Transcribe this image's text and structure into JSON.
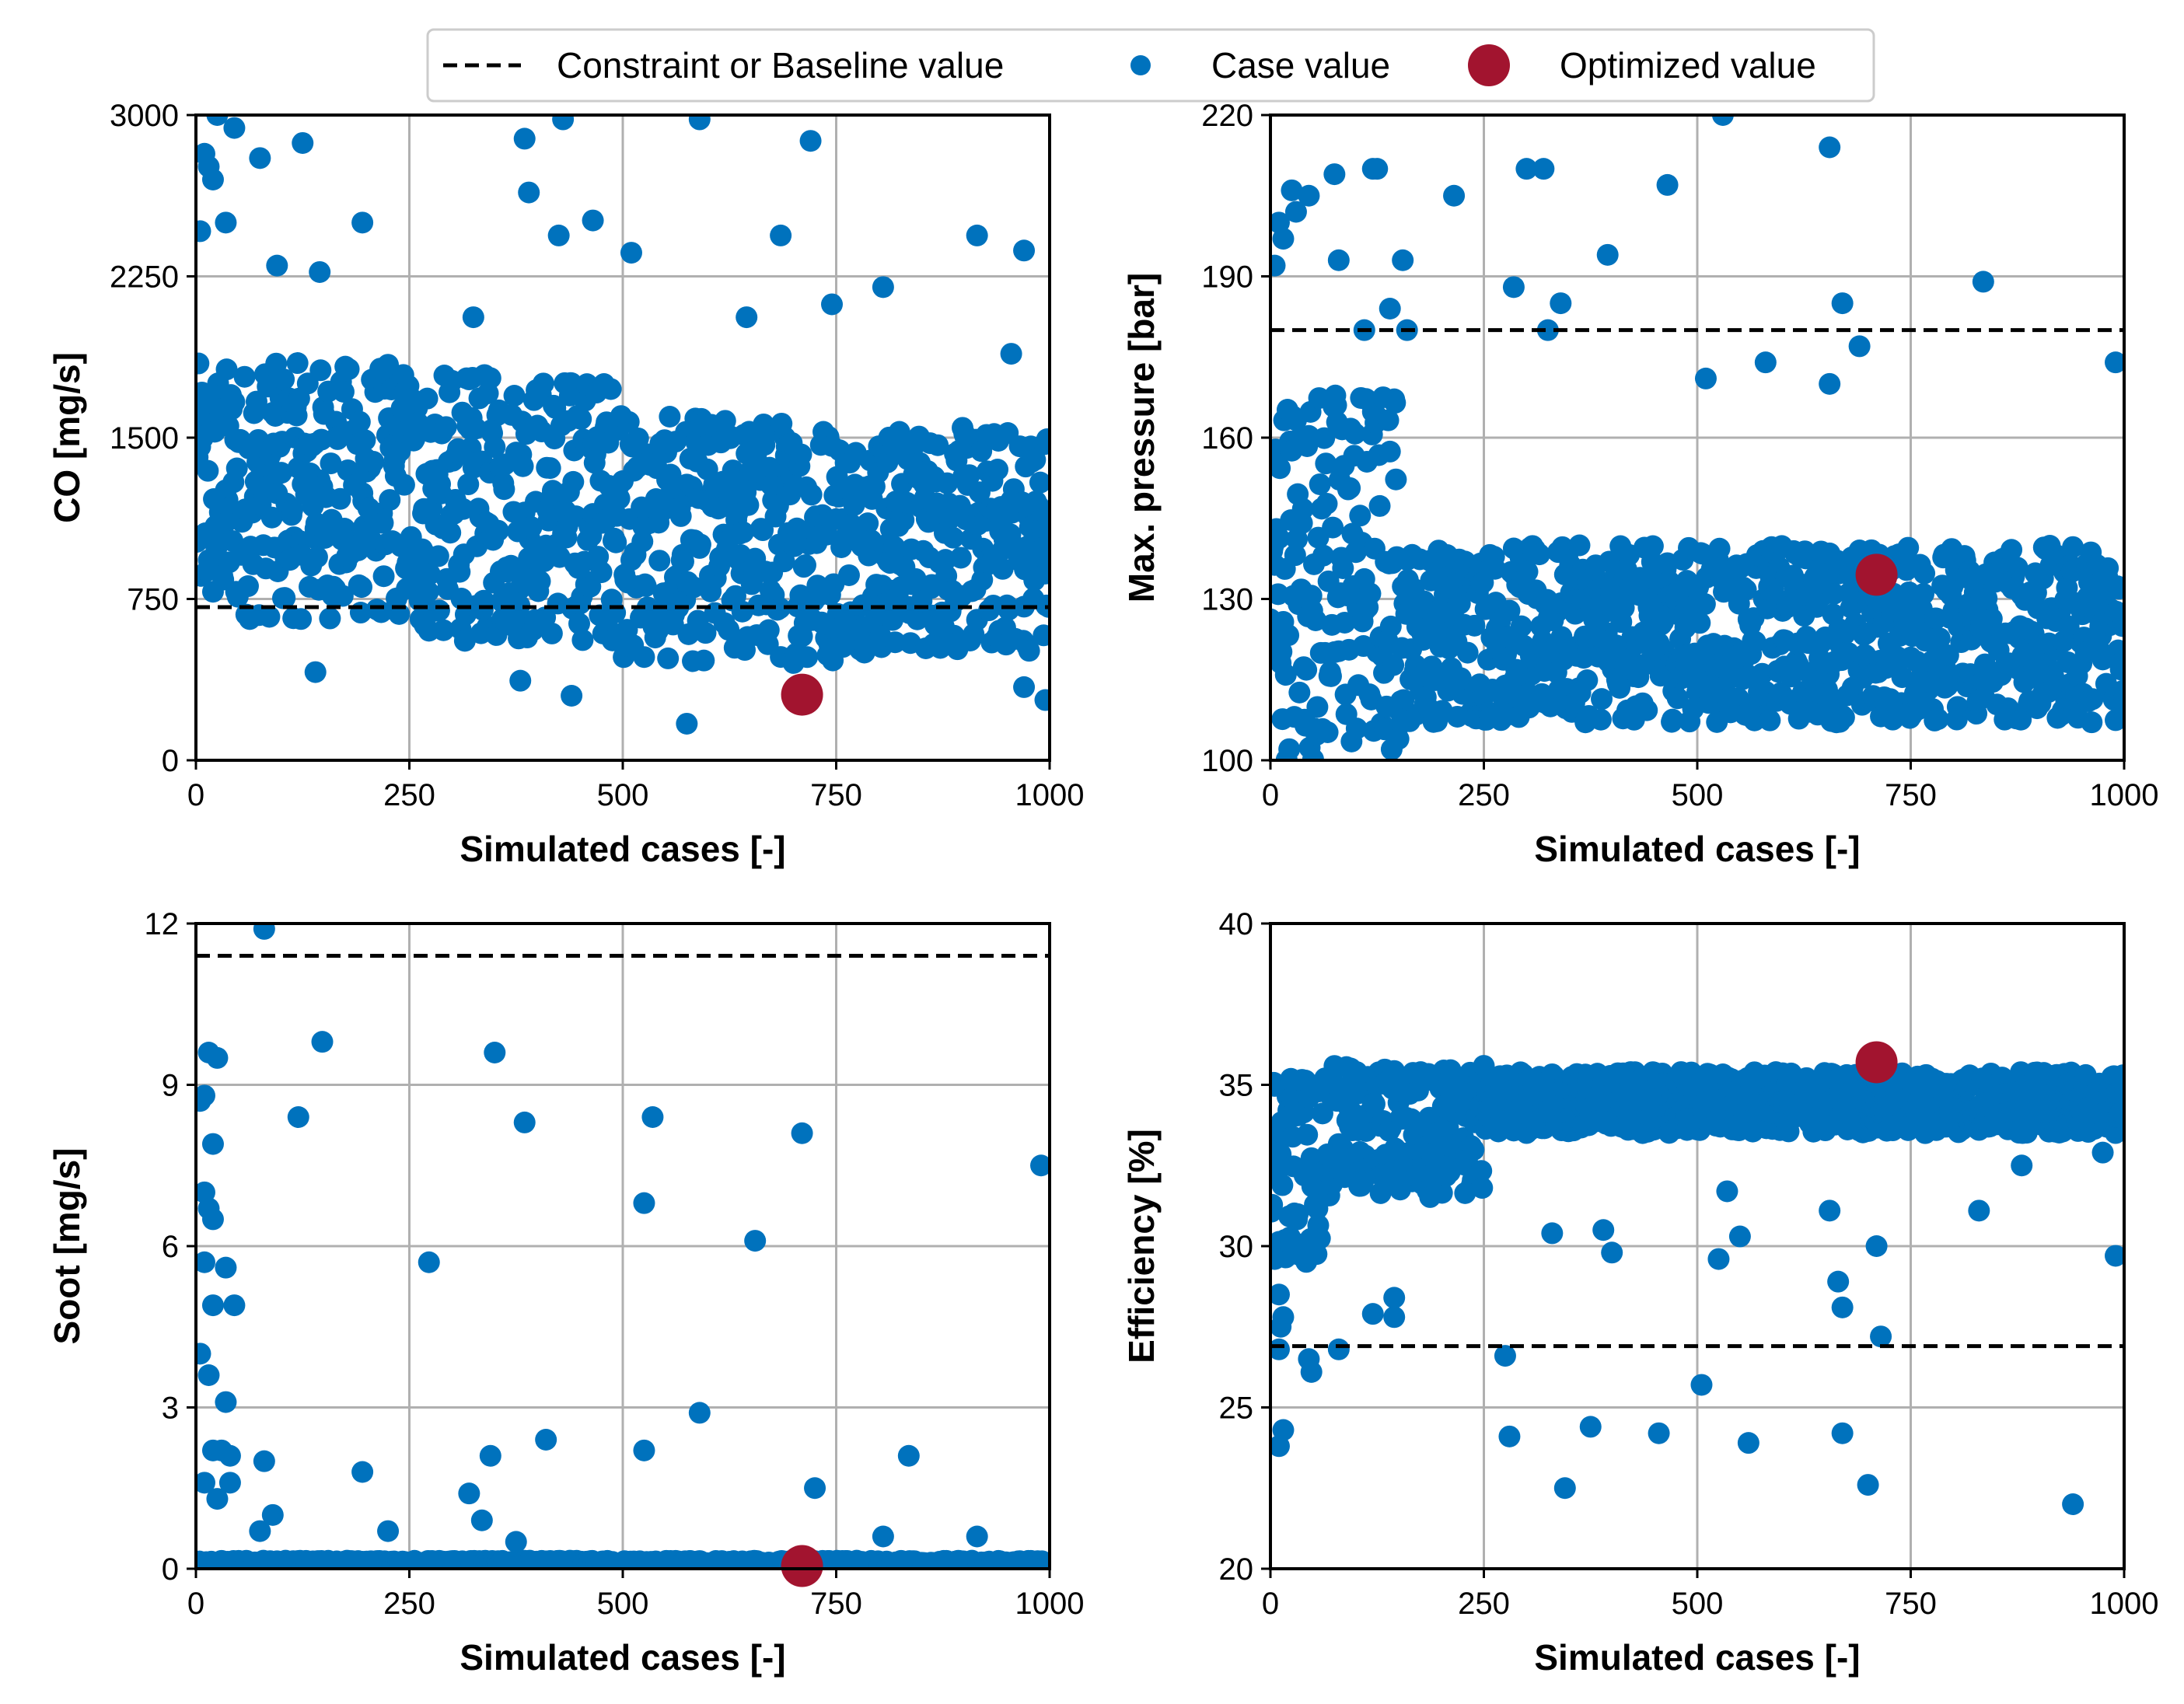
{
  "legend": {
    "items": [
      {
        "label": "Constraint or Baseline value",
        "kind": "dashed-line",
        "color": "#000000"
      },
      {
        "label": "Case value",
        "kind": "marker-small",
        "color": "#0072BD"
      },
      {
        "label": "Optimized value",
        "kind": "marker-large",
        "color": "#A2142F"
      }
    ]
  },
  "colors": {
    "case": "#0072BD",
    "optimized": "#A2142F",
    "constraint": "#000000",
    "grid": "#b0b0b0"
  },
  "chart_data": [
    {
      "id": "co",
      "type": "scatter",
      "ylabel": "CO [mg/s]",
      "xlabel": "Simulated cases [-]",
      "xlim": [
        0,
        1000
      ],
      "ylim": [
        0,
        3000
      ],
      "xticks": [
        0,
        250,
        500,
        750,
        1000
      ],
      "yticks": [
        0,
        750,
        1500,
        2250,
        3000
      ],
      "constraint": 712,
      "optimized": {
        "x": 710,
        "y": 305
      },
      "n_cases": 1000,
      "outliers": [
        [
          5,
          2460
        ],
        [
          10,
          2820
        ],
        [
          15,
          2760
        ],
        [
          20,
          2700
        ],
        [
          25,
          3000
        ],
        [
          35,
          2500
        ],
        [
          45,
          2940
        ],
        [
          75,
          2800
        ],
        [
          95,
          2300
        ],
        [
          125,
          2870
        ],
        [
          145,
          2270
        ],
        [
          195,
          2500
        ],
        [
          325,
          2060
        ],
        [
          385,
          2890
        ],
        [
          390,
          2640
        ],
        [
          430,
          2980
        ],
        [
          425,
          2440
        ],
        [
          465,
          2510
        ],
        [
          510,
          2360
        ],
        [
          590,
          2980
        ],
        [
          645,
          2060
        ],
        [
          685,
          2440
        ],
        [
          720,
          2880
        ],
        [
          745,
          2120
        ],
        [
          805,
          2200
        ],
        [
          915,
          2440
        ],
        [
          970,
          2370
        ],
        [
          955,
          1890
        ],
        [
          440,
          300
        ],
        [
          575,
          170
        ],
        [
          705,
          340
        ],
        [
          970,
          340
        ],
        [
          995,
          280
        ],
        [
          380,
          370
        ],
        [
          140,
          410
        ]
      ],
      "bands": [
        {
          "x0": 0,
          "x1": 260,
          "lo": 650,
          "hi": 1850
        },
        {
          "x0": 260,
          "x1": 500,
          "lo": 550,
          "hi": 1800
        },
        {
          "x0": 500,
          "x1": 750,
          "lo": 450,
          "hi": 1600
        },
        {
          "x0": 750,
          "x1": 1000,
          "lo": 500,
          "hi": 1550
        }
      ]
    },
    {
      "id": "pressure",
      "type": "scatter",
      "ylabel": "Max. pressure [bar]",
      "xlabel": "Simulated cases [-]",
      "xlim": [
        0,
        1000
      ],
      "ylim": [
        100,
        220
      ],
      "xticks": [
        0,
        250,
        500,
        750,
        1000
      ],
      "yticks": [
        100,
        130,
        160,
        190,
        220
      ],
      "constraint": 180,
      "optimized": {
        "x": 710,
        "y": 134.5
      },
      "n_cases": 1000,
      "outliers": [
        [
          5,
          192
        ],
        [
          10,
          200
        ],
        [
          15,
          197
        ],
        [
          25,
          206
        ],
        [
          30,
          202
        ],
        [
          45,
          205
        ],
        [
          75,
          209
        ],
        [
          80,
          193
        ],
        [
          120,
          210
        ],
        [
          125,
          210
        ],
        [
          140,
          184
        ],
        [
          155,
          193
        ],
        [
          215,
          205
        ],
        [
          285,
          188
        ],
        [
          300,
          210
        ],
        [
          320,
          210
        ],
        [
          340,
          185
        ],
        [
          395,
          194
        ],
        [
          465,
          207
        ],
        [
          530,
          220
        ],
        [
          655,
          214
        ],
        [
          670,
          185
        ],
        [
          690,
          177
        ],
        [
          835,
          189
        ],
        [
          990,
          174
        ],
        [
          510,
          171
        ],
        [
          580,
          174
        ],
        [
          655,
          170
        ],
        [
          110,
          180
        ],
        [
          160,
          180
        ],
        [
          325,
          180
        ]
      ],
      "bands": [
        {
          "x0": 0,
          "x1": 150,
          "lo": 100,
          "hi": 170
        },
        {
          "x0": 150,
          "x1": 1000,
          "lo": 107,
          "hi": 140
        }
      ]
    },
    {
      "id": "soot",
      "type": "scatter",
      "ylabel": "Soot [mg/s]",
      "xlabel": "Simulated cases [-]",
      "xlim": [
        0,
        1000
      ],
      "ylim": [
        0,
        12
      ],
      "xticks": [
        0,
        250,
        500,
        750,
        1000
      ],
      "yticks": [
        0,
        3,
        6,
        9,
        12
      ],
      "constraint": 11.4,
      "optimized": {
        "x": 710,
        "y": 0.05
      },
      "n_cases": 1000,
      "outliers": [
        [
          5,
          8.7
        ],
        [
          10,
          8.8
        ],
        [
          15,
          9.6
        ],
        [
          20,
          7.9
        ],
        [
          25,
          9.5
        ],
        [
          10,
          7.0
        ],
        [
          15,
          6.7
        ],
        [
          20,
          6.5
        ],
        [
          35,
          5.6
        ],
        [
          45,
          4.9
        ],
        [
          10,
          5.7
        ],
        [
          20,
          4.9
        ],
        [
          5,
          4.0
        ],
        [
          15,
          3.6
        ],
        [
          35,
          3.1
        ],
        [
          20,
          2.2
        ],
        [
          30,
          2.2
        ],
        [
          40,
          2.1
        ],
        [
          10,
          1.6
        ],
        [
          25,
          1.3
        ],
        [
          40,
          1.6
        ],
        [
          80,
          11.9
        ],
        [
          80,
          2.0
        ],
        [
          90,
          1.0
        ],
        [
          75,
          0.7
        ],
        [
          120,
          8.4
        ],
        [
          148,
          9.8
        ],
        [
          195,
          1.8
        ],
        [
          225,
          0.7
        ],
        [
          273,
          5.7
        ],
        [
          320,
          1.4
        ],
        [
          335,
          0.9
        ],
        [
          345,
          2.1
        ],
        [
          350,
          9.6
        ],
        [
          385,
          8.3
        ],
        [
          375,
          0.5
        ],
        [
          410,
          2.4
        ],
        [
          525,
          6.8
        ],
        [
          535,
          8.4
        ],
        [
          525,
          2.2
        ],
        [
          590,
          2.9
        ],
        [
          655,
          6.1
        ],
        [
          710,
          8.1
        ],
        [
          725,
          1.5
        ],
        [
          805,
          0.6
        ],
        [
          835,
          2.1
        ],
        [
          915,
          0.6
        ],
        [
          990,
          7.5
        ]
      ],
      "bands": [
        {
          "x0": 0,
          "x1": 1000,
          "lo": 0.0,
          "hi": 0.15
        }
      ]
    },
    {
      "id": "efficiency",
      "type": "scatter",
      "ylabel": "Efficiency [%]",
      "xlabel": "Simulated cases [-]",
      "xlim": [
        0,
        1000
      ],
      "ylim": [
        20,
        40
      ],
      "xticks": [
        0,
        250,
        500,
        750,
        1000
      ],
      "yticks": [
        20,
        25,
        30,
        35,
        40
      ],
      "constraint": 26.9,
      "optimized": {
        "x": 710,
        "y": 35.7
      },
      "n_cases": 1000,
      "outliers": [
        [
          5,
          29.6
        ],
        [
          10,
          28.5
        ],
        [
          12,
          27.5
        ],
        [
          15,
          27.8
        ],
        [
          10,
          26.8
        ],
        [
          15,
          24.3
        ],
        [
          10,
          23.8
        ],
        [
          45,
          26.5
        ],
        [
          48,
          26.1
        ],
        [
          80,
          26.8
        ],
        [
          120,
          27.9
        ],
        [
          145,
          27.8
        ],
        [
          145,
          28.4
        ],
        [
          275,
          26.6
        ],
        [
          280,
          24.1
        ],
        [
          330,
          30.4
        ],
        [
          345,
          22.5
        ],
        [
          375,
          24.4
        ],
        [
          390,
          30.5
        ],
        [
          400,
          29.8
        ],
        [
          455,
          24.2
        ],
        [
          505,
          25.7
        ],
        [
          525,
          29.6
        ],
        [
          535,
          31.7
        ],
        [
          550,
          30.3
        ],
        [
          560,
          23.9
        ],
        [
          655,
          31.1
        ],
        [
          665,
          28.9
        ],
        [
          670,
          28.1
        ],
        [
          670,
          24.2
        ],
        [
          700,
          22.6
        ],
        [
          710,
          30.0
        ],
        [
          715,
          27.2
        ],
        [
          830,
          31.1
        ],
        [
          880,
          32.5
        ],
        [
          940,
          22.0
        ],
        [
          975,
          32.9
        ],
        [
          990,
          29.7
        ]
      ],
      "bands": [
        {
          "x0": 0,
          "x1": 60,
          "lo": 29.5,
          "hi": 35.5
        },
        {
          "x0": 60,
          "x1": 250,
          "lo": 31.5,
          "hi": 35.6
        },
        {
          "x0": 250,
          "x1": 1000,
          "lo": 33.5,
          "hi": 35.4
        }
      ]
    }
  ]
}
